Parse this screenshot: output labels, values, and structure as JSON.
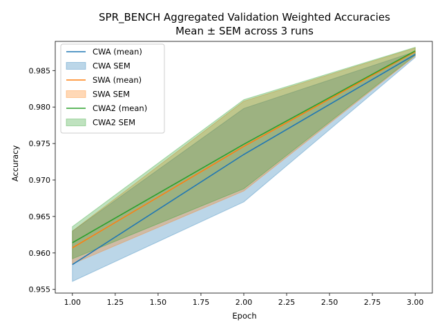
{
  "chart_data": {
    "type": "line",
    "title_line1": "SPR_BENCH Aggregated Validation Weighted Accuracies",
    "title_line2": "Mean ± SEM across 3 runs",
    "xlabel": "Epoch",
    "ylabel": "Accuracy",
    "x": [
      1,
      2,
      3
    ],
    "xlim": [
      0.9,
      3.1
    ],
    "ylim": [
      0.9545,
      0.989
    ],
    "xticks": [
      "1.00",
      "1.25",
      "1.50",
      "1.75",
      "2.00",
      "2.25",
      "2.50",
      "2.75",
      "3.00"
    ],
    "yticks": [
      "0.955",
      "0.960",
      "0.965",
      "0.970",
      "0.975",
      "0.980",
      "0.985"
    ],
    "legend_position": "upper-left",
    "series": [
      {
        "name": "CWA (mean)",
        "sem_name": "CWA SEM",
        "color": "#1f77b4",
        "mean": [
          0.9584,
          0.9735,
          0.9872
        ],
        "lower": [
          0.9561,
          0.967,
          0.9868
        ],
        "upper": [
          0.963,
          0.9798,
          0.9876
        ]
      },
      {
        "name": "SWA (mean)",
        "sem_name": "SWA SEM",
        "color": "#ff7f0e",
        "mean": [
          0.9607,
          0.9746,
          0.9876
        ],
        "lower": [
          0.9585,
          0.9685,
          0.987
        ],
        "upper": [
          0.963,
          0.9808,
          0.9881
        ]
      },
      {
        "name": "CWA2 (mean)",
        "sem_name": "CWA2 SEM",
        "color": "#2ca02c",
        "mean": [
          0.9614,
          0.9749,
          0.9877
        ],
        "lower": [
          0.9592,
          0.9688,
          0.9871
        ],
        "upper": [
          0.9636,
          0.981,
          0.9882
        ]
      }
    ]
  }
}
